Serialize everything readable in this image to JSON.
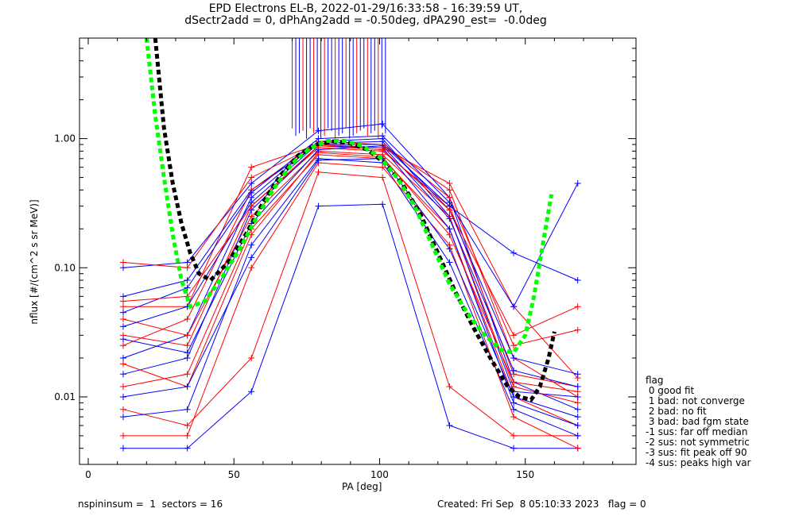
{
  "header": {
    "title_line1": "EPD Electrons EL-B, 2022-01-29/16:33:58 - 16:39:59 UT,",
    "title_line2": "dSectr2add = 0, dPhAng2add = -0.50deg, dPA290_est=  -0.0deg"
  },
  "footer": {
    "left": "nspininsum =  1  sectors = 16",
    "right": "Created: Fri Sep  8 05:10:33 2023   flag = 0"
  },
  "legend": {
    "title": "flag",
    "items": [
      " 0 good fit",
      " 1 bad: not converge",
      " 2 bad: no fit",
      " 3 bad: bad fgm state",
      "-1 sus: far off median",
      "-2 sus: not symmetric",
      "-3 sus: fit peak off 90",
      "-4 sus: peaks high var"
    ]
  },
  "colors": {
    "red": "#ff0000",
    "blue": "#0000ff",
    "green": "#00ff00",
    "black": "#000000"
  },
  "chart_data": {
    "type": "line",
    "title": "EPD Electrons EL-B, 2022-01-29/16:33:58 - 16:39:59 UT, dSectr2add = 0, dPhAng2add = -0.50deg, dPA290_est=  -0.0deg",
    "xlabel": "PA [deg]",
    "ylabel": "nflux [#/(cm^2 s sr MeV)]",
    "xlim": [
      -3,
      188
    ],
    "ylim": [
      0.003,
      6.0
    ],
    "y_scale": "log",
    "x_ticks": [
      0,
      50,
      100,
      150
    ],
    "x_tick_labels": [
      "0",
      "50",
      "100",
      "150"
    ],
    "y_ticks": [
      0.01,
      0.1,
      1.0
    ],
    "y_tick_labels": [
      "0.01",
      "0.10",
      "1.00"
    ],
    "pa_bins": [
      12,
      34,
      56,
      79,
      101,
      124,
      146,
      168
    ],
    "spectra": [
      {
        "color": "red",
        "values": [
          0.05,
          0.05,
          0.6,
          0.9,
          0.9,
          0.4,
          0.02,
          0.01
        ]
      },
      {
        "color": "blue",
        "values": [
          0.1,
          0.11,
          0.45,
          1.15,
          1.3,
          0.35,
          0.013,
          0.008
        ]
      },
      {
        "color": "red",
        "values": [
          0.03,
          0.025,
          0.3,
          0.85,
          0.8,
          0.3,
          0.015,
          0.012
        ]
      },
      {
        "color": "blue",
        "values": [
          0.004,
          0.004,
          0.011,
          0.3,
          0.31,
          0.006,
          0.004,
          0.004
        ]
      },
      {
        "color": "red",
        "values": [
          0.012,
          0.015,
          0.2,
          0.75,
          0.7,
          0.2,
          0.01,
          0.006
        ]
      },
      {
        "color": "blue",
        "values": [
          0.02,
          0.03,
          0.35,
          0.95,
          1.0,
          0.25,
          0.011,
          0.01
        ]
      },
      {
        "color": "red",
        "values": [
          0.008,
          0.006,
          0.02,
          0.55,
          0.5,
          0.012,
          0.005,
          0.005
        ]
      },
      {
        "color": "blue",
        "values": [
          0.06,
          0.08,
          0.4,
          0.9,
          0.9,
          0.3,
          0.13,
          0.08
        ]
      },
      {
        "color": "red",
        "values": [
          0.04,
          0.03,
          0.25,
          0.8,
          0.75,
          0.25,
          0.012,
          0.009
        ]
      },
      {
        "color": "blue",
        "values": [
          0.015,
          0.02,
          0.28,
          0.88,
          0.85,
          0.2,
          0.009,
          0.006
        ]
      },
      {
        "color": "red",
        "values": [
          0.025,
          0.04,
          0.4,
          0.95,
          0.9,
          0.35,
          0.025,
          0.033
        ]
      },
      {
        "color": "blue",
        "values": [
          0.007,
          0.008,
          0.15,
          0.7,
          0.65,
          0.11,
          0.008,
          0.005
        ]
      },
      {
        "color": "red",
        "values": [
          0.11,
          0.1,
          0.5,
          0.9,
          0.85,
          0.45,
          0.05,
          0.014
        ]
      },
      {
        "color": "blue",
        "values": [
          0.035,
          0.05,
          0.32,
          0.92,
          0.95,
          0.28,
          0.02,
          0.015
        ]
      },
      {
        "color": "red",
        "values": [
          0.018,
          0.012,
          0.18,
          0.78,
          0.72,
          0.18,
          0.013,
          0.011
        ]
      },
      {
        "color": "blue",
        "values": [
          0.045,
          0.07,
          0.38,
          1.0,
          1.05,
          0.32,
          0.05,
          0.45
        ]
      },
      {
        "color": "red",
        "values": [
          0.005,
          0.005,
          0.1,
          0.65,
          0.6,
          0.15,
          0.007,
          0.004
        ]
      },
      {
        "color": "blue",
        "values": [
          0.028,
          0.022,
          0.22,
          0.82,
          0.88,
          0.24,
          0.016,
          0.012
        ]
      },
      {
        "color": "red",
        "values": [
          0.055,
          0.06,
          0.3,
          0.88,
          0.82,
          0.28,
          0.03,
          0.05
        ]
      },
      {
        "color": "blue",
        "values": [
          0.01,
          0.012,
          0.12,
          0.68,
          0.7,
          0.14,
          0.01,
          0.007
        ]
      }
    ],
    "tall_spikes_x_range": [
      70,
      102
    ],
    "fit_green": {
      "x": [
        20,
        23,
        26,
        29,
        32,
        35,
        40,
        46,
        52,
        58,
        64,
        70,
        76,
        82,
        88,
        94,
        100,
        106,
        112,
        118,
        124,
        130,
        136,
        142,
        146,
        150,
        153,
        156,
        159
      ],
      "y": [
        6.0,
        1.5,
        0.5,
        0.18,
        0.08,
        0.05,
        0.055,
        0.085,
        0.14,
        0.25,
        0.42,
        0.64,
        0.84,
        0.96,
        0.96,
        0.88,
        0.72,
        0.5,
        0.3,
        0.15,
        0.075,
        0.045,
        0.03,
        0.023,
        0.022,
        0.03,
        0.06,
        0.15,
        0.37
      ]
    },
    "fit_black": {
      "x": [
        23,
        26,
        29,
        32,
        35,
        38,
        42,
        48,
        54,
        60,
        66,
        72,
        78,
        84,
        90,
        96,
        102,
        108,
        114,
        120,
        126,
        132,
        138,
        144,
        148,
        152,
        155,
        158,
        160
      ],
      "y": [
        6.0,
        1.2,
        0.45,
        0.22,
        0.13,
        0.09,
        0.08,
        0.11,
        0.18,
        0.32,
        0.52,
        0.74,
        0.9,
        0.95,
        0.92,
        0.82,
        0.64,
        0.44,
        0.26,
        0.13,
        0.065,
        0.035,
        0.02,
        0.012,
        0.01,
        0.0095,
        0.012,
        0.02,
        0.032
      ]
    }
  }
}
